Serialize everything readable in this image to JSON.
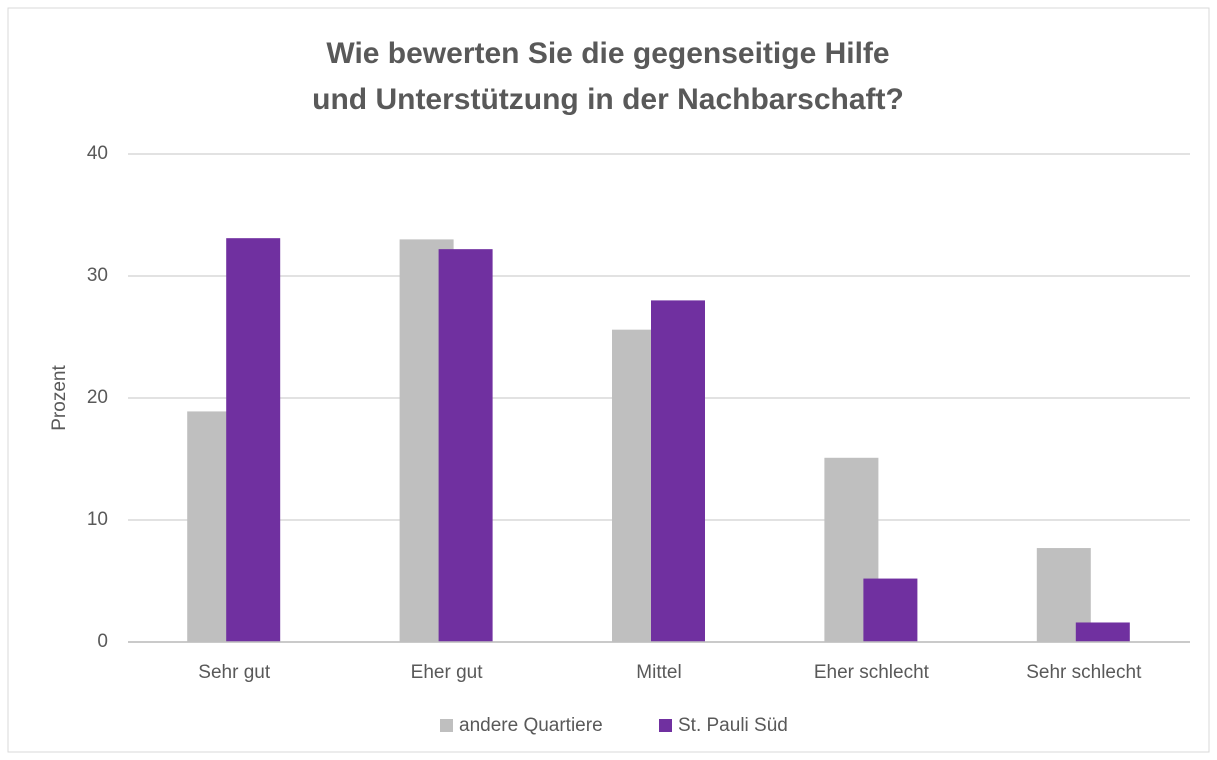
{
  "chart_data": {
    "type": "bar",
    "title": [
      "Wie bewerten Sie die gegenseitige Hilfe",
      "und Unterstützung in der Nachbarschaft?"
    ],
    "y_label": "Prozent",
    "categories": [
      "Sehr gut",
      "Eher gut",
      "Mittel",
      "Eher schlecht",
      "Sehr schlecht"
    ],
    "series": [
      {
        "name": "andere Quartiere",
        "color": "#bfbfbf",
        "values": [
          18.9,
          33.0,
          25.6,
          15.1,
          7.7
        ]
      },
      {
        "name": "St. Pauli Süd",
        "color": "#7030a0",
        "values": [
          33.1,
          32.2,
          28.0,
          5.2,
          1.6
        ]
      }
    ],
    "ylim": [
      0,
      40
    ],
    "yticks": [
      0,
      10,
      20,
      30,
      40
    ],
    "grid": true,
    "legend": "bottom"
  }
}
